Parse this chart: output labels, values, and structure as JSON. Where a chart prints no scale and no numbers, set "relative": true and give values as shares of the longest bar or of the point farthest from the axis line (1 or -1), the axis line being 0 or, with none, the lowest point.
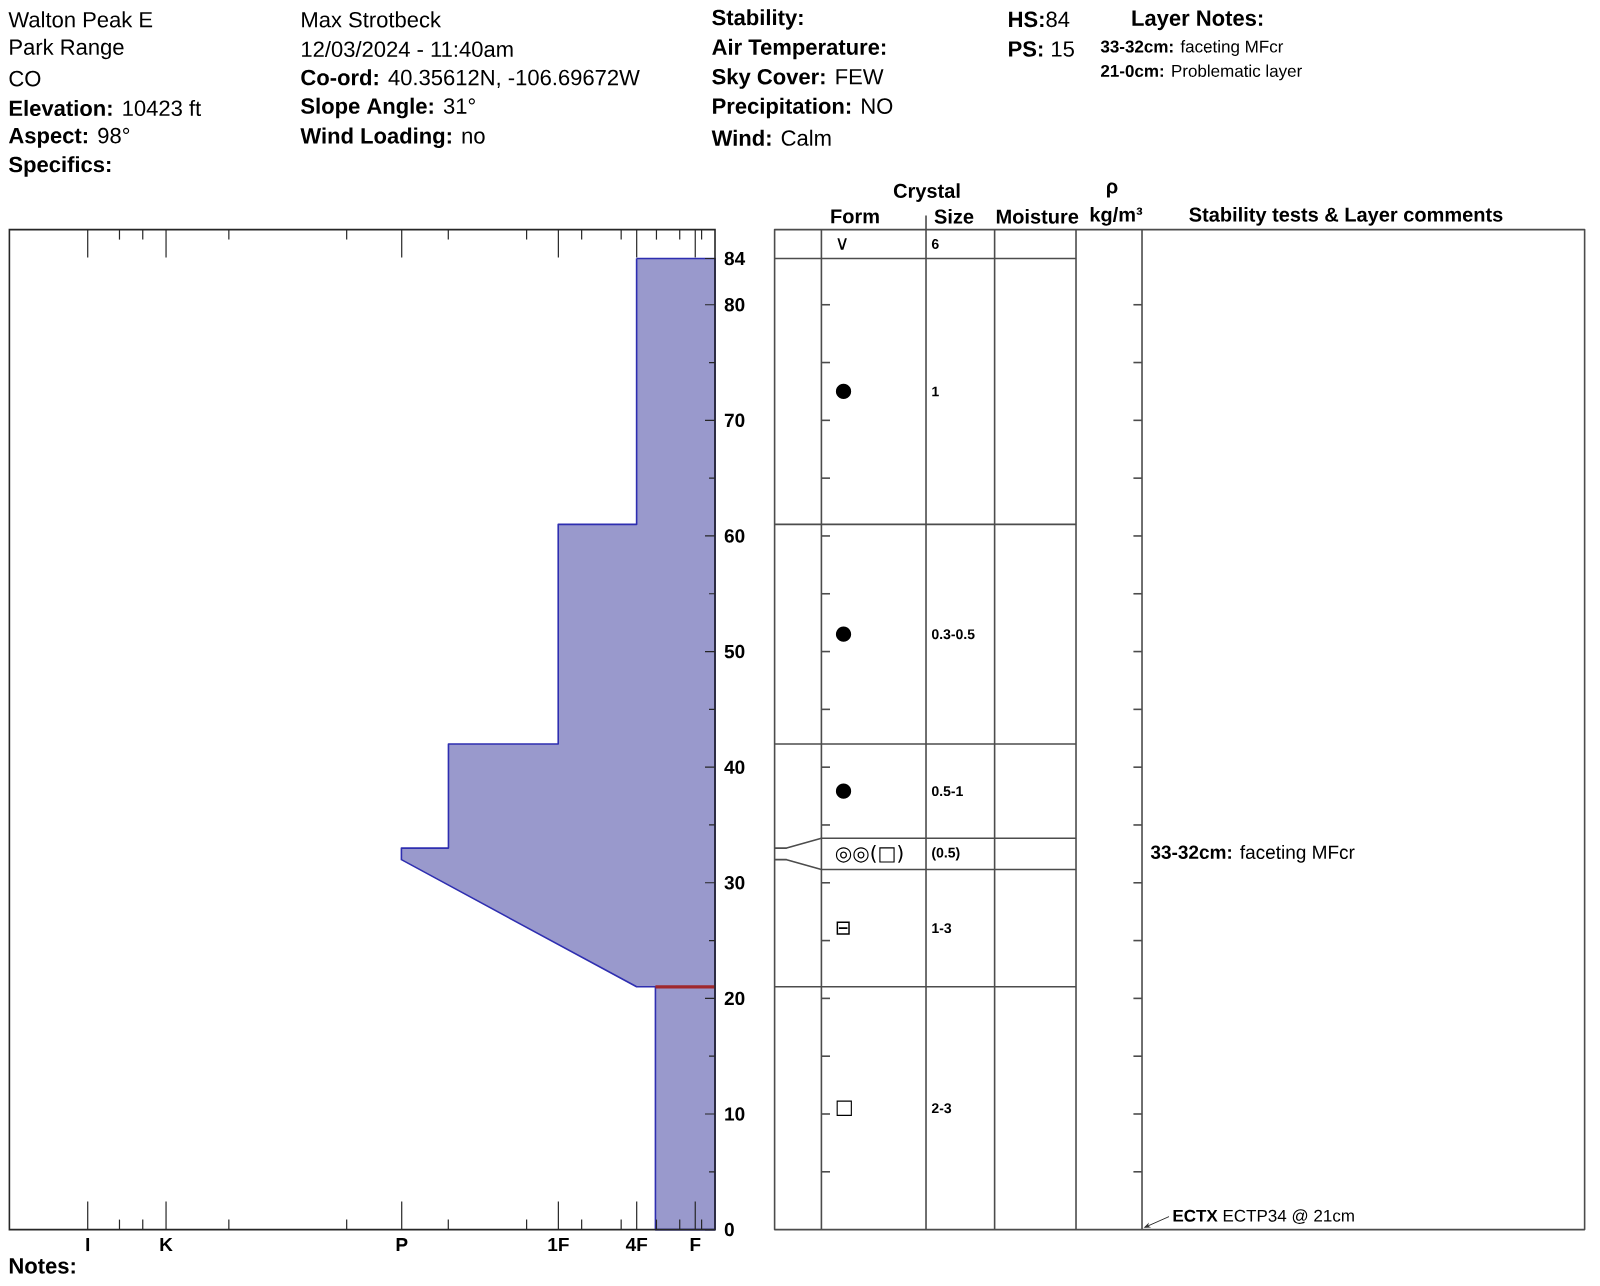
{
  "chart_data": [
    {
      "type": "other",
      "annotations": [
        "Walton Peak E",
        "Park Range",
        "CO",
        "**Elevation:** 10423 ft",
        "**Aspect:** 98°",
        "**Specifics:**",
        "Max Strotbeck",
        "12/03/2024 - 11:40am",
        "**Co-ord:** 40.35612N, -106.69672W",
        "**Slope Angle:** 31°",
        "**Wind Loading:** no",
        "**Stability:**",
        "**Air Temperature:**",
        "**Sky Cover:** FEW",
        "**Precipitation:** NO",
        "**Wind:**  Calm",
        "**HS:**84",
        "**PS:** 15",
        "**Layer Notes:**",
        "**33-32cm:** faceting MFcr",
        "**21-0cm:** Problematic layer"
      ]
    },
    {
      "type": "area",
      "orientation": "horizontal",
      "relative": true,
      "series": [
        {
          "color": "#9999cc",
          "x": [
            84,
            61,
            61,
            42,
            42,
            33,
            33,
            32,
            21,
            21,
            0
          ],
          "values": [
            -0.25,
            -0.25,
            -0.5,
            -0.5,
            -0.85,
            -0.85,
            -1,
            -1,
            -0.25,
            -0.19,
            -0.19
          ]
        }
      ],
      "ylim": [
        0,
        86.5
      ],
      "yticks": [
        0,
        10,
        20,
        30,
        40,
        50,
        60,
        70,
        80,
        84,
        {
          "value": 5,
          "label": null
        },
        {
          "value": 15,
          "label": null
        },
        {
          "value": 25,
          "label": null
        },
        {
          "value": 35,
          "label": null
        },
        {
          "value": 45,
          "label": null
        },
        {
          "value": 55,
          "label": null
        },
        {
          "value": 65,
          "label": null
        },
        {
          "value": 75,
          "label": null
        }
      ],
      "ref_lines": [
        {
          "axis": "y",
          "value": 21,
          "color": "#a0282d"
        }
      ],
      "annotations": [
        "I",
        "K",
        "P",
        "1F",
        "4F",
        "F",
        "**Notes:**"
      ]
    },
    {
      "type": "other",
      "categories": [
        null,
        "Form",
        "Size",
        "Moisture",
        "kg/m³",
        "Stability tests & Layer comments"
      ],
      "annotations": [
        "Crystal",
        "ρ",
        "∨",
        "6",
        "●",
        "1",
        "●",
        "0.3-0.5",
        "●",
        "0.5-1",
        "◎◎(□)",
        "(0.5)",
        "⊟",
        "1-3",
        "□",
        "2-3",
        "**33-32cm:** faceting MFcr",
        "**ECTX** ECTP34 @ 21cm"
      ]
    }
  ]
}
